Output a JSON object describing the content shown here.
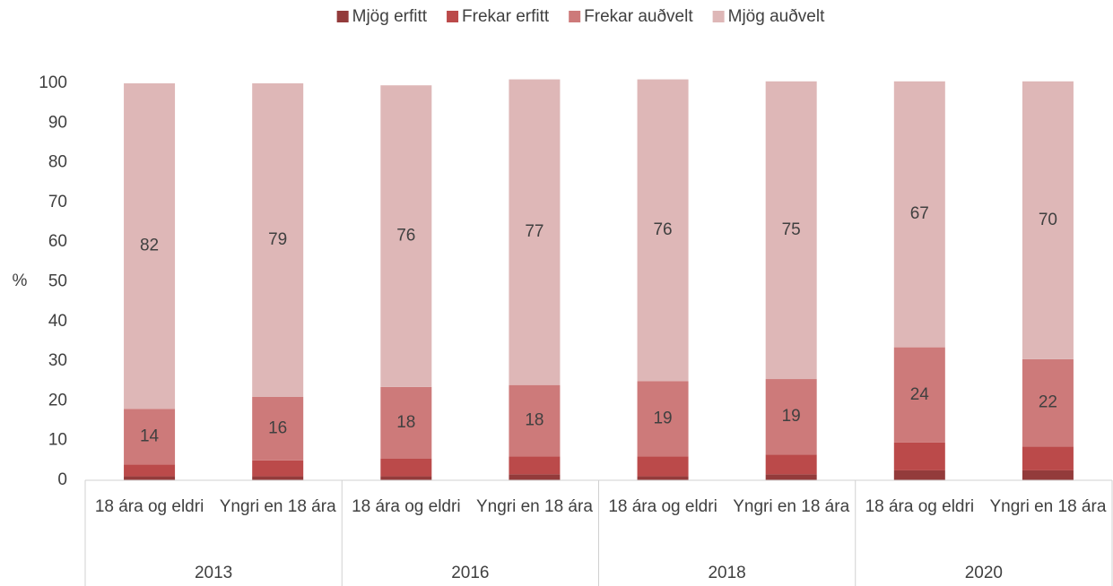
{
  "chart_data": {
    "type": "stacked_bar",
    "ylabel": "%",
    "groups": [
      "2013",
      "2016",
      "2018",
      "2020"
    ],
    "categories": [
      "18 ára og eldri",
      "Yngri en 18 ára",
      "18 ára og eldri",
      "Yngri en 18 ára",
      "18 ára og eldri",
      "Yngri en 18 ára",
      "18 ára og eldri",
      "Yngri en 18 ára"
    ],
    "series": [
      {
        "name": "Mjög erfitt",
        "color": "#933b3b",
        "show_labels": false,
        "values": [
          1,
          1,
          1,
          1.5,
          1,
          1.5,
          2.5,
          2.5
        ]
      },
      {
        "name": "Frekar erfitt",
        "color": "#bb4a4a",
        "show_labels": false,
        "values": [
          3,
          4,
          4.5,
          4.5,
          5,
          5,
          7,
          6
        ]
      },
      {
        "name": "Frekar auðvelt",
        "color": "#cd7a7a",
        "show_labels": true,
        "values": [
          14,
          16,
          18,
          18,
          19,
          19,
          24,
          22
        ]
      },
      {
        "name": "Mjög auðvelt",
        "color": "#deb7b7",
        "show_labels": true,
        "values": [
          82,
          79,
          76,
          77,
          76,
          75,
          67,
          70
        ]
      }
    ],
    "ylim": [
      0,
      100
    ],
    "yticks": [
      0,
      10,
      20,
      30,
      40,
      50,
      60,
      70,
      80,
      90,
      100
    ],
    "grid": false,
    "legend": "top"
  }
}
